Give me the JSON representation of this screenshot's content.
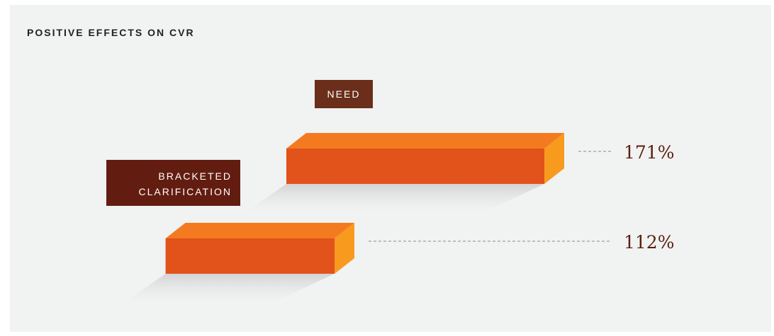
{
  "title": "POSITIVE EFFECTS ON CVR",
  "chart_data": {
    "type": "bar",
    "orientation": "horizontal",
    "title": "POSITIVE EFFECTS ON CVR",
    "categories": [
      "NEED",
      "BRACKETED CLARIFICATION"
    ],
    "values": [
      171,
      112
    ],
    "value_labels": [
      "171%",
      "112%"
    ],
    "unit": "%",
    "grid": false
  },
  "labels": {
    "need": "NEED",
    "bracketed_line1": "BRACKETED",
    "bracketed_line2": "CLARIFICATION"
  },
  "colors": {
    "background": "#f1f2f2",
    "bar_front": "#e2521b",
    "bar_top": "#f47a20",
    "bar_side": "#f79a1e",
    "tag_need": "#6a2e1a",
    "tag_bracketed": "#631d10",
    "value_text": "#5a1f10",
    "leader_line": "#bcbec0"
  }
}
